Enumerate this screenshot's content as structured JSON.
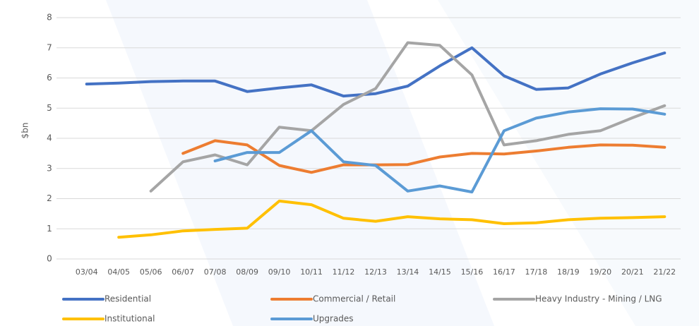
{
  "chart_data": {
    "type": "line",
    "y_label": "$bn",
    "categories": [
      "03/04",
      "04/05",
      "05/06",
      "06/07",
      "07/08",
      "08/09",
      "09/10",
      "10/11",
      "11/12",
      "12/13",
      "13/14",
      "14/15",
      "15/16",
      "16/17",
      "17/18",
      "18/19",
      "19/20",
      "20/21",
      "21/22"
    ],
    "ylim": [
      0,
      8
    ],
    "yticks": [
      0,
      1,
      2,
      3,
      4,
      5,
      6,
      7,
      8
    ],
    "grid": true,
    "legend": "bottom",
    "series": [
      {
        "name": "Residential",
        "color": "#4472c4",
        "values": [
          5.8,
          5.83,
          5.88,
          5.9,
          5.9,
          5.55,
          5.67,
          5.77,
          5.4,
          5.48,
          5.73,
          6.4,
          7.0,
          6.07,
          5.62,
          5.67,
          6.13,
          6.5,
          6.83
        ]
      },
      {
        "name": "Commercial / Retail",
        "color": "#ed7d31",
        "values": [
          null,
          null,
          null,
          3.5,
          3.92,
          3.78,
          3.1,
          2.87,
          3.12,
          3.12,
          3.13,
          3.38,
          3.5,
          3.48,
          3.58,
          3.7,
          3.78,
          3.77,
          3.7
        ]
      },
      {
        "name": "Heavy Industry - Mining / LNG",
        "color": "#a5a5a5",
        "values": [
          null,
          null,
          2.25,
          3.22,
          3.45,
          3.12,
          4.37,
          4.25,
          5.12,
          5.65,
          7.17,
          7.08,
          6.1,
          3.78,
          3.92,
          4.13,
          4.25,
          4.68,
          5.08
        ]
      },
      {
        "name": "Institutional",
        "color": "#ffc000",
        "values": [
          null,
          0.72,
          0.8,
          0.93,
          0.98,
          1.02,
          1.92,
          1.8,
          1.35,
          1.25,
          1.4,
          1.33,
          1.3,
          1.17,
          1.2,
          1.3,
          1.35,
          1.37,
          1.4
        ]
      },
      {
        "name": "Upgrades",
        "color": "#5b9bd5",
        "values": [
          null,
          null,
          null,
          null,
          3.25,
          3.53,
          3.53,
          4.25,
          3.22,
          3.1,
          2.25,
          2.42,
          2.22,
          4.25,
          4.67,
          4.87,
          4.98,
          4.97,
          4.8
        ]
      }
    ]
  }
}
